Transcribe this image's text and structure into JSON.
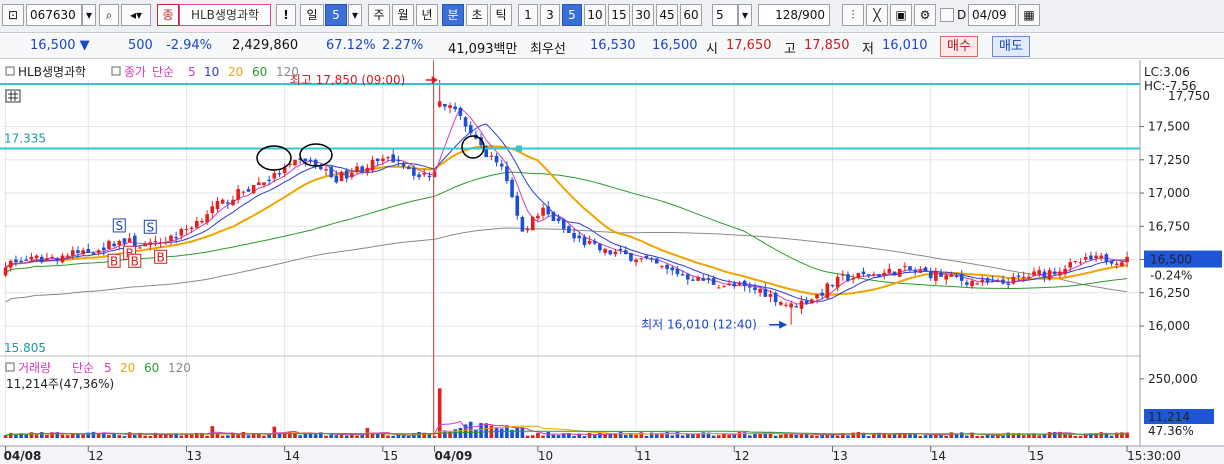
{
  "toolbar": {
    "code": "067630",
    "stock_tag": "종",
    "stock_name": "HLB생명과학",
    "exclaim": "!",
    "period_day": "일",
    "period_day_num": "5",
    "period_week": "주",
    "period_month": "월",
    "period_year": "년",
    "period_min": "분",
    "period_sec": "초",
    "period_tick": "틱",
    "intervals": [
      "1",
      "3",
      "5",
      "10",
      "15",
      "30",
      "45",
      "60"
    ],
    "interval_selected": "5",
    "count_value": "5",
    "bars": "128",
    "bars_total": "/900",
    "date_label": "D",
    "date_value": "04/09"
  },
  "quote": {
    "price": "16,500",
    "change": "500",
    "change_pct": "-2.94%",
    "volume": "2,429,860",
    "vol_ratio": "67.12%",
    "turnover": "2.27%",
    "amount": "41,093백만",
    "best_label": "최우선",
    "best_ask": "16,530",
    "best_bid": "16,500",
    "open_label": "시",
    "open": "17,650",
    "high_label": "고",
    "high": "17,850",
    "low_label": "저",
    "low": "16,010",
    "buy_button": "매수",
    "sell_button": "매도"
  },
  "colors": {
    "up": "#e31e1e",
    "down": "#1c4fd8",
    "ma5": "#d23bb8",
    "ma10": "#2a3cd6",
    "ma20": "#f0a400",
    "ma60": "#2a9a2a",
    "ma120": "#8a8a8a",
    "hline": "#34c3d0",
    "axis_bg": "#ffffff"
  },
  "chart_data": {
    "type": "candlestick",
    "price_legend": {
      "name": "HLB생명과학",
      "price_label": "종가",
      "ma_type": "단순",
      "periods": [
        "5",
        "10",
        "20",
        "60",
        "120"
      ]
    },
    "volume_legend": {
      "name": "거래량",
      "ma_type": "단순",
      "periods": [
        "5",
        "20",
        "60",
        "120"
      ],
      "current_value": "11,214주(47,36%)"
    },
    "price_axis_ticks": [
      "17,500",
      "17,250",
      "17,000",
      "16,750",
      "16,500",
      "16,250",
      "16,000"
    ],
    "top_tick_partial": "17,750",
    "price_axis": {
      "min": 15805,
      "max": 17850
    },
    "volume_axis_ticks": [
      "250,000"
    ],
    "volume_axis_max": 330000,
    "current_price_tag": "16,500",
    "current_change_tag": "-0.24%",
    "lc_label": "LC:3.06",
    "hc_label": "HC:-7.56",
    "current_volume_tag": "11,214",
    "current_volume_pct": "47.36%",
    "left_top_label": "17.335",
    "left_top_value": 17335,
    "left_bottom_label": "15.805",
    "max_annotation": "최고 17,850 (09:00)",
    "min_annotation": "최저 16,010 (12:40)",
    "x_labels": [
      {
        "text": "04/08",
        "index": 0,
        "bold": true
      },
      {
        "text": "12",
        "index": 16
      },
      {
        "text": "13",
        "index": 35
      },
      {
        "text": "14",
        "index": 54
      },
      {
        "text": "15",
        "index": 73
      },
      {
        "text": "04/09",
        "index": 83,
        "bold": true
      },
      {
        "text": "10",
        "index": 103
      },
      {
        "text": "11",
        "index": 122
      },
      {
        "text": "12",
        "index": 141
      },
      {
        "text": "13",
        "index": 160
      },
      {
        "text": "14",
        "index": 179
      },
      {
        "text": "15",
        "index": 198
      },
      {
        "text": "15:30:00",
        "index": 217
      }
    ],
    "session_break_index": 83,
    "max_index": 84,
    "min_index": 152,
    "signal_markers": [
      {
        "type": "S",
        "index": 22
      },
      {
        "type": "B",
        "index": 21
      },
      {
        "type": "S",
        "index": 28
      },
      {
        "type": "B",
        "index": 24
      },
      {
        "type": "B",
        "index": 25
      },
      {
        "type": "B",
        "index": 30
      }
    ],
    "note": "candle OHLC & volume generated from keypoint path in script"
  }
}
